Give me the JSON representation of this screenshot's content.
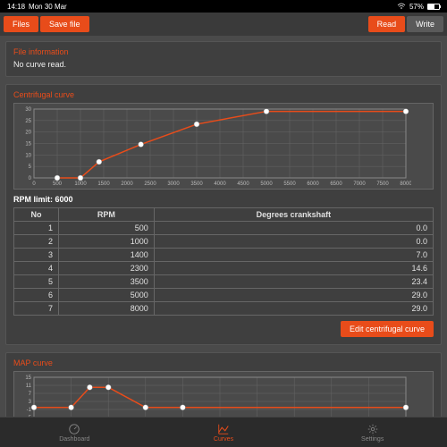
{
  "status": {
    "time": "14:18",
    "date": "Mon 30 Mar",
    "wifi_icon": "wifi",
    "battery_pct": 57,
    "battery_text": "57%"
  },
  "toolbar": {
    "files_label": "Files",
    "save_label": "Save file",
    "read_label": "Read",
    "write_label": "Write"
  },
  "file_info": {
    "title": "File information",
    "body": "No curve read."
  },
  "centrifugal": {
    "title": "Centrifugal curve",
    "rpm_limit_label": "RPM limit: 6000",
    "edit_label": "Edit centrifugal curve",
    "chart": {
      "type": "line",
      "xlim": [
        0,
        8000
      ],
      "ylim": [
        0,
        30
      ],
      "xtick_step": 500,
      "ytick_step": 5,
      "grid_color": "#666666",
      "background_color": "#4a4a4a",
      "line_color": "#e84c1a",
      "marker_color": "#ffffff",
      "marker_radius": 3,
      "points_x": [
        500,
        1000,
        1400,
        2300,
        3500,
        5000,
        8000
      ],
      "points_y": [
        0.0,
        0.0,
        7.0,
        14.6,
        23.4,
        29.0,
        29.0
      ]
    },
    "table": {
      "columns": [
        "No",
        "RPM",
        "Degrees crankshaft"
      ],
      "rows": [
        [
          "1",
          "500",
          "0.0"
        ],
        [
          "2",
          "1000",
          "0.0"
        ],
        [
          "3",
          "1400",
          "7.0"
        ],
        [
          "4",
          "2300",
          "14.6"
        ],
        [
          "5",
          "3500",
          "23.4"
        ],
        [
          "6",
          "5000",
          "29.0"
        ],
        [
          "7",
          "8000",
          "29.0"
        ]
      ]
    }
  },
  "map_curve": {
    "title": "MAP curve",
    "chart": {
      "type": "line",
      "xlim": [
        0,
        100
      ],
      "ylim": [
        -5,
        15
      ],
      "grid_color": "#666666",
      "background_color": "#4a4a4a",
      "line_color": "#e84c1a",
      "marker_color": "#ffffff",
      "marker_radius": 3,
      "points_x": [
        0,
        10,
        15,
        20,
        30,
        40,
        100
      ],
      "points_y": [
        0,
        0,
        10,
        10,
        0,
        0,
        0
      ]
    }
  },
  "tabs": {
    "dashboard": "Dashboard",
    "curves": "Curves",
    "settings": "Settings"
  }
}
